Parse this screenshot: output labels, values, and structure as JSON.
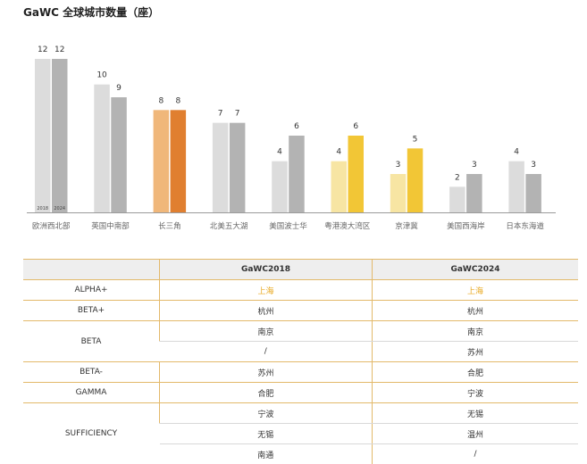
{
  "title": "GaWC 全球城市数量（座）",
  "chart_data": {
    "type": "bar",
    "categories": [
      "欧洲西北部",
      "英国中南部",
      "长三角",
      "北美五大湖",
      "美国波士华",
      "粤港澳大湾区",
      "京津冀",
      "美国西海岸",
      "日本东海道"
    ],
    "series": [
      {
        "name": "2018",
        "values": [
          12,
          10,
          8,
          7,
          4,
          4,
          3,
          2,
          4
        ]
      },
      {
        "name": "2024",
        "values": [
          12,
          9,
          8,
          7,
          6,
          6,
          5,
          3,
          3
        ]
      }
    ],
    "ylim": [
      0,
      12
    ],
    "colors": {
      "gray_2018": "#dcdcdc",
      "gray_2024": "#b3b3b3",
      "orange_2018": "#f0b77a",
      "orange_2024": "#e07f30",
      "yellow_2018": "#f7e5a3",
      "yellow_2024": "#f2c636"
    },
    "highlight_orange": [
      2
    ],
    "highlight_yellow": [
      5,
      6
    ]
  },
  "table": {
    "headers": [
      "",
      "GaWC2018",
      "GaWC2024"
    ],
    "rows": [
      {
        "level": "ALPHA+",
        "y2018": "上海",
        "y2024": "上海"
      },
      {
        "level": "BETA+",
        "y2018": "杭州",
        "y2024": "杭州"
      },
      {
        "level": "BETA",
        "y2018": "南京",
        "y2024": "南京"
      },
      {
        "level": "",
        "y2018": "/",
        "y2024": "苏州"
      },
      {
        "level": "BETA-",
        "y2018": "苏州",
        "y2024": "合肥"
      },
      {
        "level": "GAMMA",
        "y2018": "合肥",
        "y2024": "宁波"
      },
      {
        "level": "SUFFICIENCY",
        "y2018": "宁波",
        "y2024": "无锡"
      },
      {
        "level": "",
        "y2018": "无锡",
        "y2024": "温州"
      },
      {
        "level": "",
        "y2018": "南通",
        "y2024": "/"
      }
    ]
  }
}
